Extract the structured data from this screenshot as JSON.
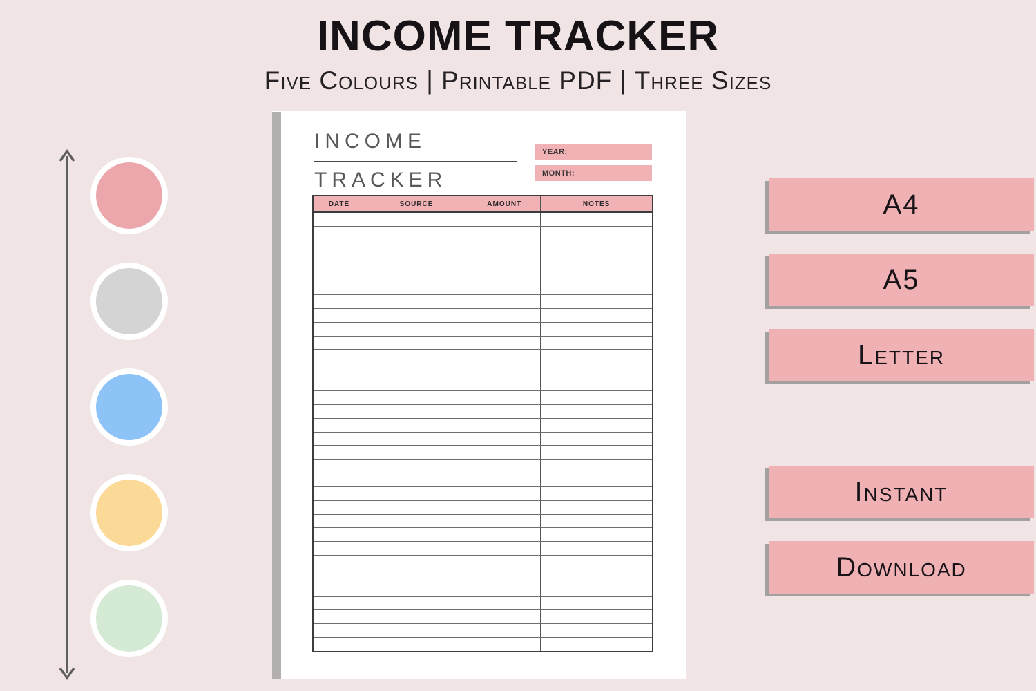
{
  "header": {
    "title": "INCOME TRACKER",
    "subtitle": "Five Colours | Printable PDF | Three Sizes"
  },
  "colors": {
    "background": "#f0e5e4",
    "accent_pink": "#f0b2b5",
    "button_shadow": "#a3a0a0",
    "arrow": "#5f5f5f",
    "paper_spine": "#b3afaf",
    "doc_heading_gray": "#57585a"
  },
  "palette": [
    {
      "name": "pink",
      "hex": "#eca7ac"
    },
    {
      "name": "gray",
      "hex": "#d4d4d4"
    },
    {
      "name": "blue",
      "hex": "#8ec3f8"
    },
    {
      "name": "yellow",
      "hex": "#fbd996"
    },
    {
      "name": "green",
      "hex": "#d5ead5"
    }
  ],
  "document": {
    "title_line1": "INCOME",
    "title_line2": "TRACKER",
    "year_label": "YEAR:",
    "month_label": "MONTH:",
    "table": {
      "headers": [
        "DATE",
        "SOURCE",
        "AMOUNT",
        "NOTES"
      ],
      "row_count": 32,
      "rows_empty": true
    }
  },
  "size_options": [
    {
      "label": "A4"
    },
    {
      "label": "A5"
    },
    {
      "label": "Letter"
    }
  ],
  "download_info": [
    {
      "label": "Instant"
    },
    {
      "label": "Download"
    }
  ]
}
